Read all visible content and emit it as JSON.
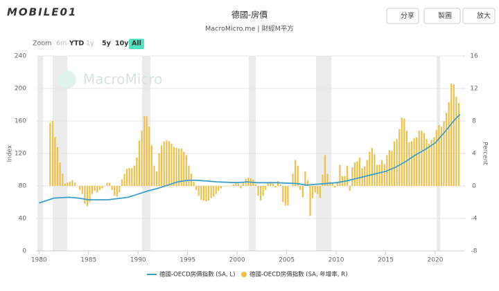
{
  "header": {
    "logo": "MOBILE01",
    "buttons": [
      "分享",
      "製圖",
      "放大"
    ]
  },
  "toolbar": {
    "label": "Zoom",
    "ranges": [
      "6m",
      "YTD",
      "1y",
      "5y",
      "10y",
      "All"
    ],
    "active": "All",
    "disabled": [
      "6m",
      "1y"
    ]
  },
  "watermark": "MacroMicro",
  "chart_data": {
    "type": "combo",
    "title": "德國-房價",
    "subtitle": "MacroMicro.me | 財經M平方",
    "ylabel": "Index",
    "y2label": "Percent",
    "xlim": [
      1979.7,
      2022.8
    ],
    "xticks": [
      1980,
      1985,
      1990,
      1995,
      2000,
      2005,
      2010,
      2015,
      2020
    ],
    "ylim": [
      0,
      240
    ],
    "yticks": [
      0,
      40,
      80,
      120,
      160,
      200,
      240
    ],
    "y2lim": [
      -8,
      16
    ],
    "y2ticks": [
      -8,
      -4,
      0,
      4,
      8,
      12,
      16
    ],
    "grid": true,
    "legend": "bottom",
    "series": [
      {
        "name": "德國-OECD房價指數 (SA, L)",
        "type": "line",
        "axis": "y",
        "color": "#3a9fc7",
        "x": [
          1980,
          1981,
          1981.5,
          1983,
          1984,
          1985,
          1987,
          1989,
          1990,
          1991,
          1992,
          1993,
          1994,
          1995,
          1996,
          1998,
          2000,
          2001,
          2002,
          2004,
          2006,
          2007,
          2008,
          2010,
          2011,
          2012,
          2013,
          2014,
          2015,
          2016,
          2017,
          2018,
          2019,
          2020,
          2021,
          2022,
          2022.5
        ],
        "values": [
          59,
          63,
          65,
          66,
          65,
          63,
          63,
          66,
          70,
          74,
          77,
          81,
          85,
          87,
          87,
          85,
          84,
          85,
          84,
          84,
          83,
          81,
          82,
          84,
          86,
          89,
          92,
          95,
          98,
          103,
          110,
          118,
          125,
          133,
          147,
          162,
          168
        ]
      },
      {
        "name": "德國-OECD房價指數 (SA, 年增率, R)",
        "type": "bar",
        "axis": "y2",
        "color": "#f0c04a",
        "x": [
          1981.125,
          1981.375,
          1981.625,
          1981.875,
          1982.125,
          1982.375,
          1982.625,
          1982.875,
          1983.125,
          1983.375,
          1983.625,
          1983.875,
          1984.125,
          1984.375,
          1984.625,
          1984.875,
          1985.125,
          1985.375,
          1985.625,
          1985.875,
          1986.125,
          1986.375,
          1986.625,
          1986.875,
          1987.125,
          1987.375,
          1987.625,
          1987.875,
          1988.125,
          1988.375,
          1988.625,
          1988.875,
          1989.125,
          1989.375,
          1989.625,
          1989.875,
          1990.125,
          1990.375,
          1990.625,
          1990.875,
          1991.125,
          1991.375,
          1991.625,
          1991.875,
          1992.125,
          1992.375,
          1992.625,
          1992.875,
          1993.125,
          1993.375,
          1993.625,
          1993.875,
          1994.125,
          1994.375,
          1994.625,
          1994.875,
          1995.125,
          1995.375,
          1995.625,
          1995.875,
          1996.125,
          1996.375,
          1996.625,
          1996.875,
          1997.125,
          1997.375,
          1997.625,
          1997.875,
          1998.125,
          1998.375,
          1998.625,
          1998.875,
          1999.125,
          1999.375,
          1999.625,
          1999.875,
          2000.125,
          2000.375,
          2000.625,
          2000.875,
          2001.125,
          2001.375,
          2001.625,
          2001.875,
          2002.125,
          2002.375,
          2002.625,
          2002.875,
          2003.125,
          2003.375,
          2003.625,
          2003.875,
          2004.125,
          2004.375,
          2004.625,
          2004.875,
          2005.125,
          2005.375,
          2005.625,
          2005.875,
          2006.125,
          2006.375,
          2006.625,
          2006.875,
          2007.125,
          2007.375,
          2007.625,
          2007.875,
          2008.125,
          2008.375,
          2008.625,
          2008.875,
          2009.125,
          2009.375,
          2009.625,
          2009.875,
          2010.125,
          2010.375,
          2010.625,
          2010.875,
          2011.125,
          2011.375,
          2011.625,
          2011.875,
          2012.125,
          2012.375,
          2012.625,
          2012.875,
          2013.125,
          2013.375,
          2013.625,
          2013.875,
          2014.125,
          2014.375,
          2014.625,
          2014.875,
          2015.125,
          2015.375,
          2015.625,
          2015.875,
          2016.125,
          2016.375,
          2016.625,
          2016.875,
          2017.125,
          2017.375,
          2017.625,
          2017.875,
          2018.125,
          2018.375,
          2018.625,
          2018.875,
          2019.125,
          2019.375,
          2019.625,
          2019.875,
          2020.125,
          2020.375,
          2020.625,
          2020.875,
          2021.125,
          2021.375,
          2021.625,
          2021.875,
          2022.125,
          2022.375
        ],
        "values": [
          7.8,
          8.0,
          6.0,
          4.8,
          2.9,
          1.5,
          0.3,
          0.4,
          0.5,
          0.7,
          0.4,
          0.0,
          -0.5,
          -1.0,
          -2.2,
          -2.5,
          -2.0,
          -1.0,
          -0.6,
          -0.8,
          -0.5,
          -0.3,
          0.0,
          0.4,
          0.4,
          -0.5,
          -1.2,
          -1.3,
          -0.8,
          0.8,
          1.5,
          2.1,
          2.2,
          2.2,
          2.5,
          3.5,
          5.6,
          6.8,
          8.6,
          8.6,
          7.3,
          5.0,
          2.5,
          1.8,
          4.0,
          5.0,
          5.5,
          5.6,
          5.5,
          5.2,
          4.8,
          4.7,
          4.6,
          4.6,
          4.2,
          3.8,
          2.5,
          1.5,
          0.5,
          -0.5,
          -1.2,
          -1.7,
          -1.8,
          -1.9,
          -1.8,
          -1.5,
          -1.3,
          -1.0,
          -0.6,
          -0.3,
          0.0,
          0.0,
          0.0,
          0.0,
          0.2,
          0.5,
          0.3,
          -0.3,
          0.4,
          0.9,
          1.0,
          0.9,
          0.8,
          0.2,
          -1.2,
          -1.8,
          -1.2,
          -0.5,
          0.4,
          0.5,
          0.3,
          -0.2,
          0.6,
          0.2,
          -2.0,
          -2.4,
          -2.4,
          0.0,
          1.5,
          3.2,
          2.5,
          -0.5,
          -1.4,
          1.8,
          0.7,
          -3.7,
          -1.5,
          -0.8,
          -1.0,
          -1.5,
          1.4,
          3.8,
          1.5,
          0.5,
          0.4,
          -0.2,
          0.5,
          2.6,
          1.2,
          1.2,
          2.5,
          -0.6,
          2.3,
          2.9,
          3.0,
          3.5,
          2.2,
          2.4,
          3.2,
          4.2,
          4.7,
          3.9,
          2.6,
          2.6,
          3.2,
          2.7,
          3.8,
          4.4,
          4.3,
          5.5,
          5.8,
          7.0,
          8.4,
          8.3,
          6.8,
          5.4,
          5.5,
          5.9,
          6.0,
          6.8,
          6.8,
          6.5,
          5.8,
          5.2,
          5.7,
          6.0,
          6.9,
          7.5,
          7.3,
          8.0,
          9.0,
          10.3,
          12.6,
          12.5,
          11.0,
          10.2
        ]
      }
    ]
  }
}
